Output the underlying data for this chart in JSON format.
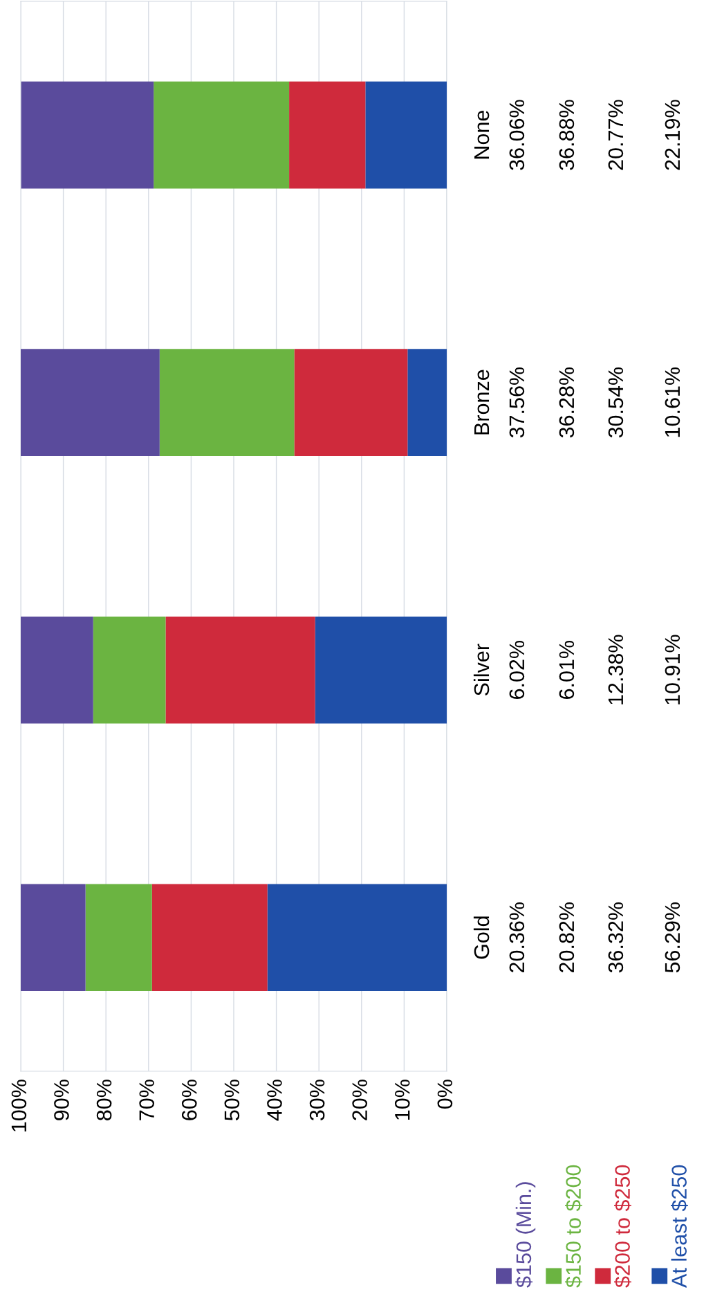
{
  "chart_data": {
    "type": "bar",
    "orientation": "horizontal",
    "stacked": true,
    "legend": "bottom",
    "grid": "x",
    "categories": [
      "None",
      "Bronze",
      "Silver",
      "Gold"
    ],
    "xlim": [
      100,
      0
    ],
    "xticks": [
      {
        "value": 100,
        "label": "100%"
      },
      {
        "value": 90,
        "label": "90%"
      },
      {
        "value": 80,
        "label": "80%"
      },
      {
        "value": 70,
        "label": "70%"
      },
      {
        "value": 60,
        "label": "60%"
      },
      {
        "value": 50,
        "label": "50%"
      },
      {
        "value": 40,
        "label": "40%"
      },
      {
        "value": 30,
        "label": "30%"
      },
      {
        "value": 20,
        "label": "20%"
      },
      {
        "value": 10,
        "label": "10%"
      },
      {
        "value": 0,
        "label": "0%"
      }
    ],
    "series": [
      {
        "name": "At least $250",
        "color": "#1f4fa8",
        "values": [
          19.1,
          9.2,
          30.9,
          42.1
        ]
      },
      {
        "name": "$200 to $250",
        "color": "#cf2a3c",
        "values": [
          17.9,
          26.6,
          35.1,
          27.1
        ]
      },
      {
        "name": "$150 to $200",
        "color": "#6bb441",
        "values": [
          31.8,
          31.6,
          17.0,
          15.6
        ]
      },
      {
        "name": "$150 (Min.)",
        "color": "#5a4b9c",
        "values": [
          31.1,
          32.7,
          17.0,
          15.2
        ]
      }
    ],
    "annotations": [
      "36.06%",
      "37.56%",
      "6.02%",
      "20.36%",
      "36.88%",
      "36.28%",
      "6.01%",
      "20.82%",
      "20.77%",
      "30.54%",
      "12.38%",
      "36.32%",
      "22.19%",
      "10.61%",
      "10.91%",
      "56.29%"
    ]
  }
}
